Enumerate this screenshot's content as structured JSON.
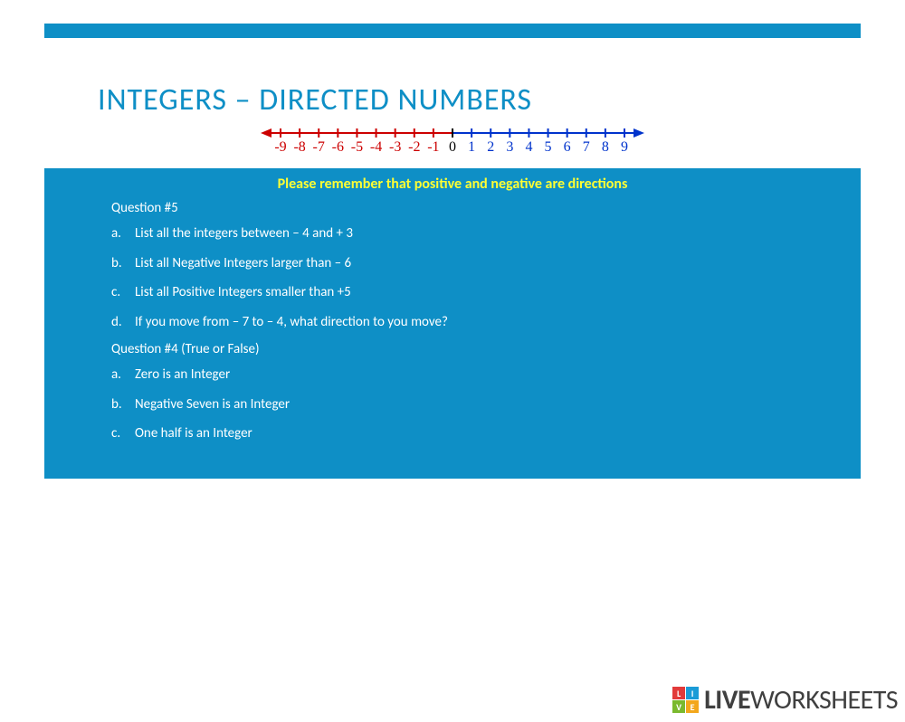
{
  "title": "INTEGERS – DIRECTED NUMBERS",
  "numberline": {
    "range_start": -9,
    "range_end": 9,
    "negative_color": "#cc0000",
    "positive_color": "#0033cc",
    "zero_color": "#000000",
    "labels": [
      "-9",
      "-8",
      "-7",
      "-6",
      "-5",
      "-4",
      "-3",
      "-2",
      "-1",
      "0",
      "1",
      "2",
      "3",
      "4",
      "5",
      "6",
      "7",
      "8",
      "9"
    ],
    "font_family": "Times New Roman, serif",
    "font_size": 16
  },
  "reminder": "Please remember that positive and negative are directions",
  "q5": {
    "header": "Question #5",
    "items": [
      {
        "marker": "a.",
        "text": "List all the integers between  – 4 and + 3"
      },
      {
        "marker": "b.",
        "text": "List all Negative Integers larger than  – 6"
      },
      {
        "marker": "c.",
        "text": "List all Positive Integers smaller than +5"
      },
      {
        "marker": "d.",
        "text": "If you move from – 7 to – 4, what direction to you move?"
      }
    ]
  },
  "q4": {
    "header": "Question #4 (True or False)",
    "items": [
      {
        "marker": "a.",
        "text": "Zero is an Integer"
      },
      {
        "marker": "b.",
        "text": "Negative Seven is an Integer"
      },
      {
        "marker": "c.",
        "text": "One half is an Integer"
      }
    ]
  },
  "colors": {
    "accent": "#0e8fc6",
    "yellow": "#ffff33",
    "white": "#ffffff"
  },
  "footer": {
    "brand_bold": "LIVE",
    "brand_rest": "WORKSHEETS",
    "squares": [
      "L",
      "I",
      "V",
      "E"
    ]
  }
}
